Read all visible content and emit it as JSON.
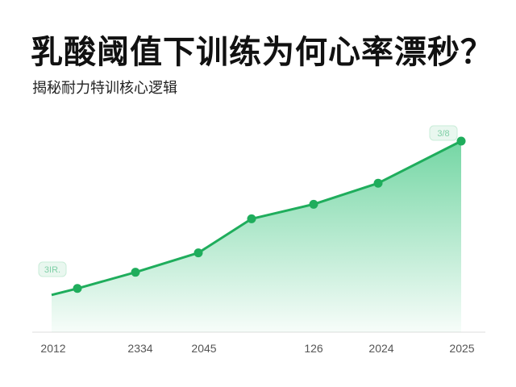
{
  "header": {
    "title": "乳酸阈值下训练为何心率漂秒？",
    "subtitle": "揭秘耐力特训核心逻辑"
  },
  "colors": {
    "line": "#1fad5c",
    "fill_top": "#5ccf94",
    "axis": "#dddddd"
  },
  "chart_data": {
    "type": "area",
    "title": "",
    "xlabel": "",
    "ylabel": "",
    "x_tick_labels": [
      "2012",
      "2334",
      "2045",
      "126",
      "2024",
      "2025"
    ],
    "ylim": [
      0,
      100
    ],
    "grid": false,
    "series": [
      {
        "values": [
          23,
          27,
          37,
          49,
          70,
          79,
          92,
          118
        ]
      }
    ],
    "annotations": [
      {
        "label": "3IR.",
        "point_index": 0
      },
      {
        "label": "3/8",
        "point_index": 7
      }
    ]
  }
}
